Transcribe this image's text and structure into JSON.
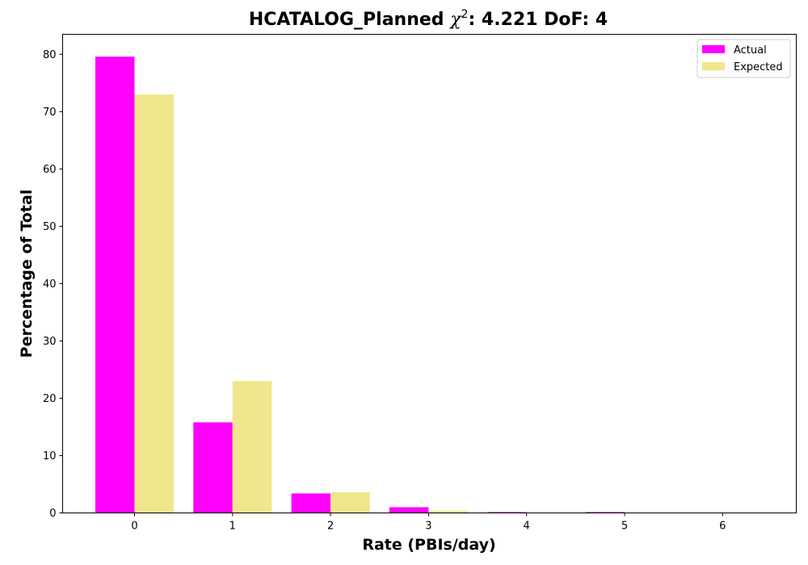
{
  "chart_data": {
    "type": "bar",
    "title_prefix": "HCATALOG_Planned ",
    "title_chi": "χ",
    "title_sup": "2",
    "title_suffix": ": 4.221 DoF: 4",
    "xlabel": "Rate (PBIs/day)",
    "ylabel": "Percentage of Total",
    "categories": [
      "0",
      "1",
      "2",
      "3",
      "4",
      "5",
      "6"
    ],
    "series": [
      {
        "name": "Actual",
        "color": "#ff00ff",
        "values": [
          79.6,
          15.8,
          3.4,
          1.0,
          0.15,
          0.15,
          0.0
        ]
      },
      {
        "name": "Expected",
        "color": "#f0e68c",
        "values": [
          73.0,
          23.0,
          3.6,
          0.4,
          0.0,
          0.0,
          0.0
        ]
      }
    ],
    "ylim": [
      0,
      83.5
    ],
    "yticks": [
      0,
      10,
      20,
      30,
      40,
      50,
      60,
      70,
      80
    ],
    "legend_position": "top-right",
    "grid": false
  }
}
